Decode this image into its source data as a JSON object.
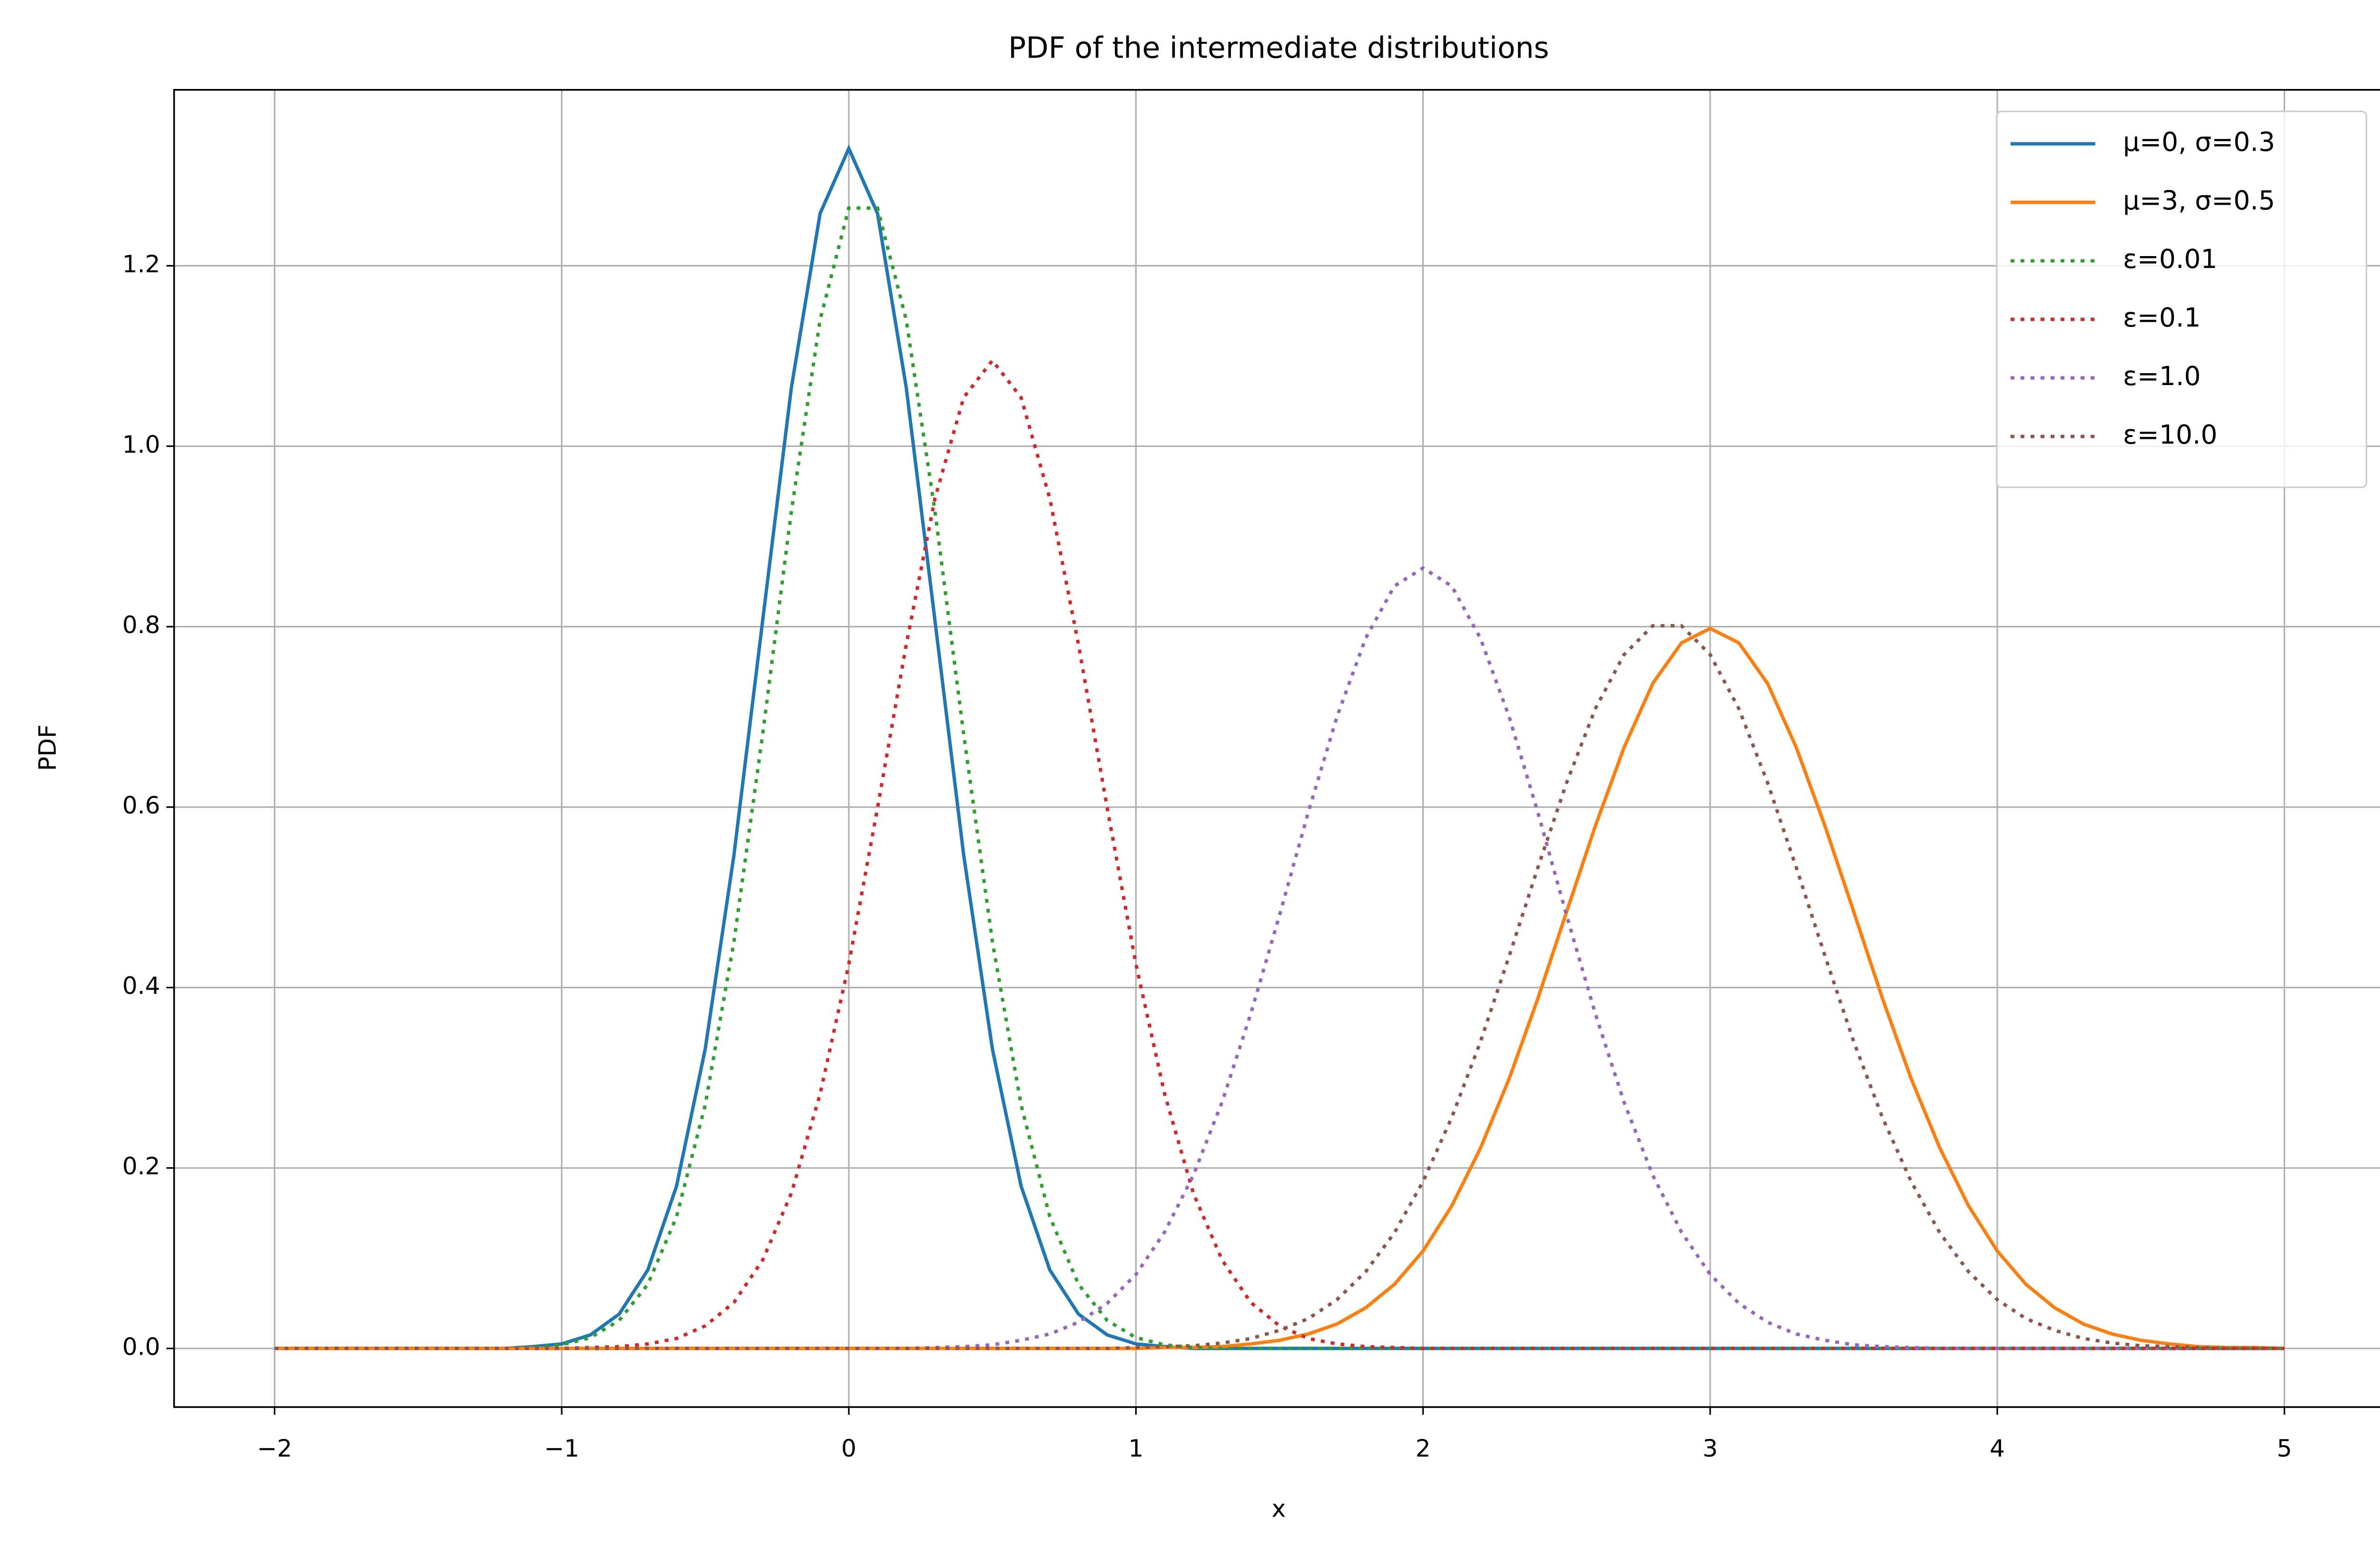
{
  "chart_data": {
    "type": "line",
    "title": "PDF of the intermediate distributions",
    "x_label": "x",
    "y_label": "PDF",
    "x": [
      -2.0,
      -1.9,
      -1.8,
      -1.7,
      -1.6,
      -1.5,
      -1.4,
      -1.3,
      -1.2,
      -1.1,
      -1.0,
      -0.9,
      -0.8,
      -0.7,
      -0.6,
      -0.5,
      -0.4,
      -0.3,
      -0.2,
      -0.1,
      0.0,
      0.1,
      0.2,
      0.3,
      0.4,
      0.5,
      0.6,
      0.7,
      0.8,
      0.9,
      1.0,
      1.1,
      1.2,
      1.3,
      1.4,
      1.5,
      1.6,
      1.7,
      1.8,
      1.9,
      2.0,
      2.1,
      2.2,
      2.3,
      2.4,
      2.5,
      2.6,
      2.7,
      2.8,
      2.9,
      3.0,
      3.1,
      3.2,
      3.3,
      3.4,
      3.5,
      3.6,
      3.7,
      3.8,
      3.9,
      4.0,
      4.1,
      4.2,
      4.3,
      4.4,
      4.5,
      4.6,
      4.7,
      4.8,
      4.9,
      5.0
    ],
    "series": [
      {
        "name": "μ=0, σ=0.3",
        "color": "#1f77b4",
        "linestyle": "solid",
        "values": [
          0,
          0,
          0,
          0,
          0,
          0,
          0,
          0,
          0,
          0.002,
          0.005,
          0.015,
          0.038,
          0.087,
          0.18,
          0.332,
          0.547,
          0.807,
          1.065,
          1.258,
          1.33,
          1.258,
          1.065,
          0.807,
          0.547,
          0.332,
          0.18,
          0.087,
          0.038,
          0.015,
          0.005,
          0.002,
          0,
          0,
          0,
          0,
          0,
          0,
          0,
          0,
          0,
          0,
          0,
          0,
          0,
          0,
          0,
          0,
          0,
          0,
          0,
          0,
          0,
          0,
          0,
          0,
          0,
          0,
          0,
          0,
          0,
          0,
          0,
          0,
          0,
          0,
          0,
          0,
          0,
          0,
          0
        ]
      },
      {
        "name": "μ=3, σ=0.5",
        "color": "#ff7f0e",
        "linestyle": "solid",
        "values": [
          0,
          0,
          0,
          0,
          0,
          0,
          0,
          0,
          0,
          0,
          0,
          0,
          0,
          0,
          0,
          0,
          0,
          0,
          0,
          0,
          0,
          0,
          0,
          0,
          0,
          0,
          0,
          0,
          0,
          0,
          0,
          0.001,
          0.001,
          0.002,
          0.005,
          0.009,
          0.016,
          0.027,
          0.045,
          0.071,
          0.108,
          0.158,
          0.222,
          0.299,
          0.388,
          0.484,
          0.579,
          0.666,
          0.737,
          0.782,
          0.798,
          0.782,
          0.737,
          0.666,
          0.579,
          0.484,
          0.388,
          0.299,
          0.222,
          0.158,
          0.108,
          0.071,
          0.045,
          0.027,
          0.016,
          0.009,
          0.005,
          0.002,
          0.001,
          0.001,
          0
        ]
      },
      {
        "name": "ε=0.01",
        "color": "#2ca02c",
        "linestyle": "dotted",
        "values": [
          0,
          0,
          0,
          0,
          0,
          0,
          0,
          0,
          0,
          0.001,
          0.004,
          0.012,
          0.031,
          0.071,
          0.146,
          0.27,
          0.451,
          0.681,
          0.928,
          1.14,
          1.264,
          1.264,
          1.14,
          0.928,
          0.681,
          0.451,
          0.27,
          0.146,
          0.071,
          0.031,
          0.012,
          0.004,
          0.001,
          0,
          0,
          0,
          0,
          0,
          0,
          0,
          0,
          0,
          0,
          0,
          0,
          0,
          0,
          0,
          0,
          0,
          0,
          0,
          0,
          0,
          0,
          0,
          0,
          0,
          0,
          0,
          0,
          0,
          0,
          0,
          0,
          0,
          0,
          0,
          0,
          0,
          0
        ]
      },
      {
        "name": "ε=0.1",
        "color": "#d62728",
        "linestyle": "dotted",
        "values": [
          0,
          0,
          0,
          0,
          0,
          0,
          0,
          0,
          0,
          0,
          0,
          0.001,
          0.002,
          0.005,
          0.011,
          0.025,
          0.051,
          0.098,
          0.172,
          0.282,
          0.426,
          0.599,
          0.78,
          0.942,
          1.054,
          1.095,
          1.054,
          0.942,
          0.78,
          0.599,
          0.426,
          0.282,
          0.172,
          0.098,
          0.051,
          0.025,
          0.011,
          0.005,
          0.002,
          0.001,
          0,
          0,
          0,
          0,
          0,
          0,
          0,
          0,
          0,
          0,
          0,
          0,
          0,
          0,
          0,
          0,
          0,
          0,
          0,
          0,
          0,
          0,
          0,
          0,
          0,
          0,
          0,
          0,
          0,
          0,
          0
        ]
      },
      {
        "name": "ε=1.0",
        "color": "#9467bd",
        "linestyle": "dotted",
        "values": [
          0,
          0,
          0,
          0,
          0,
          0,
          0,
          0,
          0,
          0,
          0,
          0,
          0,
          0,
          0,
          0,
          0,
          0,
          0,
          0,
          0,
          0,
          0,
          0.001,
          0.002,
          0.004,
          0.009,
          0.016,
          0.029,
          0.05,
          0.082,
          0.129,
          0.192,
          0.273,
          0.371,
          0.48,
          0.594,
          0.7,
          0.787,
          0.845,
          0.865,
          0.845,
          0.787,
          0.7,
          0.594,
          0.48,
          0.371,
          0.273,
          0.192,
          0.129,
          0.082,
          0.05,
          0.029,
          0.016,
          0.009,
          0.004,
          0.002,
          0.001,
          0,
          0,
          0,
          0,
          0,
          0,
          0,
          0,
          0,
          0,
          0,
          0,
          0
        ]
      },
      {
        "name": "ε=10.0",
        "color": "#8c564b",
        "linestyle": "dotted",
        "values": [
          0,
          0,
          0,
          0,
          0,
          0,
          0,
          0,
          0,
          0,
          0,
          0,
          0,
          0,
          0,
          0,
          0,
          0,
          0,
          0,
          0,
          0,
          0,
          0,
          0,
          0,
          0,
          0,
          0,
          0,
          0.001,
          0.002,
          0.003,
          0.006,
          0.011,
          0.02,
          0.033,
          0.054,
          0.085,
          0.128,
          0.185,
          0.256,
          0.34,
          0.435,
          0.533,
          0.627,
          0.709,
          0.769,
          0.801,
          0.801,
          0.769,
          0.709,
          0.627,
          0.533,
          0.435,
          0.34,
          0.256,
          0.185,
          0.128,
          0.085,
          0.054,
          0.033,
          0.02,
          0.011,
          0.006,
          0.003,
          0.002,
          0.001,
          0,
          0,
          0
        ]
      }
    ],
    "xlim": [
      -2.35,
      5.35
    ],
    "ylim": [
      -0.065,
      1.395
    ],
    "xticks": [
      {
        "value": -2,
        "label": "−2"
      },
      {
        "value": -1,
        "label": "−1"
      },
      0,
      1,
      2,
      3,
      4,
      5
    ],
    "yticks": [
      {
        "value": 0,
        "label": "0.0"
      },
      0.2,
      0.4,
      0.6,
      0.8,
      {
        "value": 1,
        "label": "1.0"
      },
      1.2
    ],
    "grid": true,
    "legend": "upper right"
  }
}
